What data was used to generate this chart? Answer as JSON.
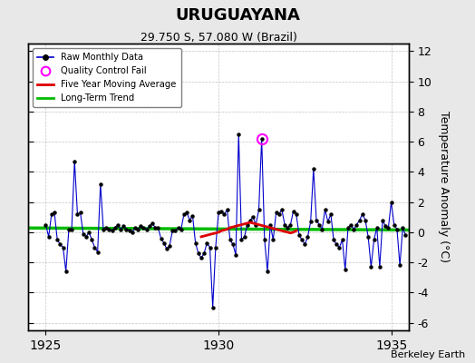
{
  "title": "URUGUAYANA",
  "subtitle": "29.750 S, 57.080 W (Brazil)",
  "ylabel": "Temperature Anomaly (°C)",
  "watermark": "Berkeley Earth",
  "xlim": [
    1924.5,
    1935.5
  ],
  "ylim": [
    -6.5,
    12.5
  ],
  "yticks": [
    -6,
    -4,
    -2,
    0,
    2,
    4,
    6,
    8,
    10,
    12
  ],
  "xticks": [
    1925,
    1930,
    1935
  ],
  "bg_color": "#e8e8e8",
  "plot_bg_color": "#ffffff",
  "raw_color": "#0000cc",
  "ma_color": "#dd0000",
  "trend_color": "#00bb00",
  "qc_color": "#ff00ff",
  "raw_data": [
    [
      1925.0,
      0.5
    ],
    [
      1925.083,
      -0.3
    ],
    [
      1925.167,
      1.2
    ],
    [
      1925.25,
      1.3
    ],
    [
      1925.333,
      -0.5
    ],
    [
      1925.417,
      -0.8
    ],
    [
      1925.5,
      -1.0
    ],
    [
      1925.583,
      -2.6
    ],
    [
      1925.667,
      0.2
    ],
    [
      1925.75,
      0.2
    ],
    [
      1925.833,
      4.7
    ],
    [
      1925.917,
      1.2
    ],
    [
      1926.0,
      1.3
    ],
    [
      1926.083,
      -0.1
    ],
    [
      1926.167,
      -0.3
    ],
    [
      1926.25,
      0.0
    ],
    [
      1926.333,
      -0.5
    ],
    [
      1926.417,
      -1.0
    ],
    [
      1926.5,
      -1.3
    ],
    [
      1926.583,
      3.2
    ],
    [
      1926.667,
      0.2
    ],
    [
      1926.75,
      0.3
    ],
    [
      1926.833,
      0.2
    ],
    [
      1926.917,
      0.1
    ],
    [
      1927.0,
      0.3
    ],
    [
      1927.083,
      0.5
    ],
    [
      1927.167,
      0.2
    ],
    [
      1927.25,
      0.4
    ],
    [
      1927.333,
      0.2
    ],
    [
      1927.417,
      0.1
    ],
    [
      1927.5,
      0.0
    ],
    [
      1927.583,
      0.3
    ],
    [
      1927.667,
      0.2
    ],
    [
      1927.75,
      0.4
    ],
    [
      1927.833,
      0.3
    ],
    [
      1927.917,
      0.2
    ],
    [
      1928.0,
      0.4
    ],
    [
      1928.083,
      0.6
    ],
    [
      1928.167,
      0.3
    ],
    [
      1928.25,
      0.3
    ],
    [
      1928.333,
      -0.4
    ],
    [
      1928.417,
      -0.7
    ],
    [
      1928.5,
      -1.1
    ],
    [
      1928.583,
      -0.9
    ],
    [
      1928.667,
      0.1
    ],
    [
      1928.75,
      0.1
    ],
    [
      1928.833,
      0.3
    ],
    [
      1928.917,
      0.2
    ],
    [
      1929.0,
      1.2
    ],
    [
      1929.083,
      1.3
    ],
    [
      1929.167,
      0.8
    ],
    [
      1929.25,
      1.1
    ],
    [
      1929.333,
      -0.7
    ],
    [
      1929.417,
      -1.4
    ],
    [
      1929.5,
      -1.7
    ],
    [
      1929.583,
      -1.4
    ],
    [
      1929.667,
      -0.7
    ],
    [
      1929.75,
      -1.0
    ],
    [
      1929.833,
      -5.0
    ],
    [
      1929.917,
      -1.0
    ],
    [
      1930.0,
      1.3
    ],
    [
      1930.083,
      1.4
    ],
    [
      1930.167,
      1.2
    ],
    [
      1930.25,
      1.5
    ],
    [
      1930.333,
      -0.5
    ],
    [
      1930.417,
      -0.8
    ],
    [
      1930.5,
      -1.5
    ],
    [
      1930.583,
      6.5
    ],
    [
      1930.667,
      -0.5
    ],
    [
      1930.75,
      -0.3
    ],
    [
      1930.833,
      0.5
    ],
    [
      1930.917,
      0.8
    ],
    [
      1931.0,
      1.0
    ],
    [
      1931.083,
      0.5
    ],
    [
      1931.167,
      1.5
    ],
    [
      1931.25,
      6.2
    ],
    [
      1931.333,
      -0.5
    ],
    [
      1931.417,
      -2.6
    ],
    [
      1931.5,
      0.5
    ],
    [
      1931.583,
      -0.5
    ],
    [
      1931.667,
      1.3
    ],
    [
      1931.75,
      1.2
    ],
    [
      1931.833,
      1.5
    ],
    [
      1931.917,
      0.5
    ],
    [
      1932.0,
      0.3
    ],
    [
      1932.083,
      0.5
    ],
    [
      1932.167,
      1.4
    ],
    [
      1932.25,
      1.2
    ],
    [
      1932.333,
      -0.2
    ],
    [
      1932.417,
      -0.5
    ],
    [
      1932.5,
      -0.8
    ],
    [
      1932.583,
      -0.3
    ],
    [
      1932.667,
      0.7
    ],
    [
      1932.75,
      4.2
    ],
    [
      1932.833,
      0.8
    ],
    [
      1932.917,
      0.5
    ],
    [
      1933.0,
      0.2
    ],
    [
      1933.083,
      1.5
    ],
    [
      1933.167,
      0.7
    ],
    [
      1933.25,
      1.2
    ],
    [
      1933.333,
      -0.5
    ],
    [
      1933.417,
      -0.8
    ],
    [
      1933.5,
      -1.0
    ],
    [
      1933.583,
      -0.5
    ],
    [
      1933.667,
      -2.5
    ],
    [
      1933.75,
      0.3
    ],
    [
      1933.833,
      0.5
    ],
    [
      1933.917,
      0.2
    ],
    [
      1934.0,
      0.5
    ],
    [
      1934.083,
      0.8
    ],
    [
      1934.167,
      1.2
    ],
    [
      1934.25,
      0.8
    ],
    [
      1934.333,
      -0.3
    ],
    [
      1934.417,
      -2.3
    ],
    [
      1934.5,
      -0.5
    ],
    [
      1934.583,
      0.3
    ],
    [
      1934.667,
      -2.3
    ],
    [
      1934.75,
      0.8
    ],
    [
      1934.833,
      0.4
    ],
    [
      1934.917,
      0.3
    ],
    [
      1935.0,
      2.0
    ],
    [
      1935.083,
      0.5
    ],
    [
      1935.167,
      0.2
    ],
    [
      1935.25,
      -2.2
    ],
    [
      1935.333,
      0.3
    ],
    [
      1935.417,
      -0.2
    ]
  ],
  "qc_points": [
    [
      1931.25,
      6.2
    ]
  ],
  "ma_data": [
    [
      1929.5,
      -0.3
    ],
    [
      1929.583,
      -0.25
    ],
    [
      1929.667,
      -0.2
    ],
    [
      1929.75,
      -0.15
    ],
    [
      1929.833,
      -0.1
    ],
    [
      1929.917,
      -0.05
    ],
    [
      1930.0,
      0.0
    ],
    [
      1930.083,
      0.1
    ],
    [
      1930.167,
      0.15
    ],
    [
      1930.25,
      0.2
    ],
    [
      1930.333,
      0.3
    ],
    [
      1930.417,
      0.35
    ],
    [
      1930.5,
      0.4
    ],
    [
      1930.583,
      0.45
    ],
    [
      1930.667,
      0.5
    ],
    [
      1930.75,
      0.55
    ],
    [
      1930.833,
      0.6
    ],
    [
      1930.917,
      0.65
    ],
    [
      1931.0,
      0.6
    ],
    [
      1931.083,
      0.55
    ],
    [
      1931.167,
      0.5
    ],
    [
      1931.25,
      0.45
    ],
    [
      1931.333,
      0.4
    ],
    [
      1931.417,
      0.35
    ],
    [
      1931.5,
      0.3
    ],
    [
      1931.583,
      0.25
    ],
    [
      1931.667,
      0.2
    ],
    [
      1931.75,
      0.15
    ],
    [
      1931.833,
      0.1
    ],
    [
      1931.917,
      0.05
    ],
    [
      1932.0,
      0.0
    ],
    [
      1932.083,
      -0.05
    ],
    [
      1932.167,
      0.0
    ],
    [
      1932.25,
      0.1
    ]
  ],
  "trend_data": [
    [
      1924.5,
      0.28
    ],
    [
      1935.5,
      0.15
    ]
  ]
}
